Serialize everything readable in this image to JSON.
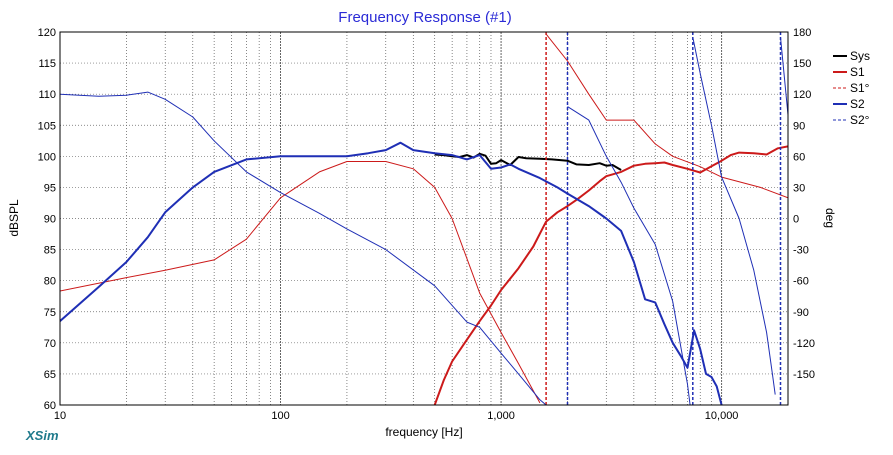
{
  "app": {
    "brand": "XSim"
  },
  "chart_data": {
    "type": "line",
    "title": "Frequency Response (#1)",
    "xlabel": "frequency [Hz]",
    "ylabel": "dBSPL",
    "y2label": "deg",
    "xscale": "log",
    "xlim": [
      10,
      20000
    ],
    "ylim": [
      60,
      120
    ],
    "y2lim": [
      -180,
      180
    ],
    "grid": true,
    "legend_position": "top-right",
    "x_ticks": [
      {
        "value": 10,
        "label": "10"
      },
      {
        "value": 100,
        "label": "100"
      },
      {
        "value": 1000,
        "label": "1,000"
      },
      {
        "value": 10000,
        "label": "10,000"
      }
    ],
    "y_ticks": [
      {
        "value": 60,
        "label": "60"
      },
      {
        "value": 65,
        "label": "65"
      },
      {
        "value": 70,
        "label": "70"
      },
      {
        "value": 75,
        "label": "75"
      },
      {
        "value": 80,
        "label": "80"
      },
      {
        "value": 85,
        "label": "85"
      },
      {
        "value": 90,
        "label": "90"
      },
      {
        "value": 95,
        "label": "95"
      },
      {
        "value": 100,
        "label": "100"
      },
      {
        "value": 105,
        "label": "105"
      },
      {
        "value": 110,
        "label": "110"
      },
      {
        "value": 115,
        "label": "115"
      },
      {
        "value": 120,
        "label": "120"
      }
    ],
    "y2_ticks": [
      {
        "value": 180,
        "label": "180"
      },
      {
        "value": 150,
        "label": "150"
      },
      {
        "value": 120,
        "label": "120"
      },
      {
        "value": 90,
        "label": "90"
      },
      {
        "value": 60,
        "label": "60"
      },
      {
        "value": 30,
        "label": "30"
      },
      {
        "value": 0,
        "label": "0"
      },
      {
        "value": -30,
        "label": "-30"
      },
      {
        "value": -60,
        "label": "-60"
      },
      {
        "value": -90,
        "label": "-90"
      },
      {
        "value": -120,
        "label": "-120"
      },
      {
        "value": -150,
        "label": "-150"
      }
    ],
    "series": [
      {
        "name": "Sys",
        "axis": "left",
        "color": "#000000",
        "dash": false,
        "width": 2,
        "x": [
          500,
          550,
          600,
          650,
          700,
          750,
          800,
          850,
          900,
          950,
          1000,
          1100,
          1200,
          1300,
          1500,
          1700,
          2000,
          2200,
          2500,
          2800,
          3000,
          3200,
          3500
        ],
        "y": [
          100.3,
          100.2,
          100,
          99.9,
          100.2,
          99.8,
          100.4,
          100.1,
          98.8,
          98.9,
          99.4,
          98.6,
          99.9,
          99.7,
          99.6,
          99.5,
          99.3,
          98.7,
          98.6,
          98.9,
          98.5,
          98.6,
          97.8
        ]
      },
      {
        "name": "S1",
        "axis": "left",
        "color": "#cc1a1a",
        "dash": false,
        "width": 2,
        "x": [
          500,
          550,
          600,
          700,
          800,
          900,
          1000,
          1200,
          1400,
          1600,
          1800,
          2000,
          2200,
          2500,
          2800,
          3000,
          3500,
          4000,
          4500,
          5000,
          5500,
          6000,
          7000,
          8000,
          9000,
          10000,
          11000,
          12000,
          14000,
          16000,
          18000,
          20000
        ],
        "y": [
          60,
          64,
          67,
          70.5,
          73.5,
          76,
          78.5,
          82,
          85.5,
          89.5,
          91,
          92,
          93,
          94.5,
          96,
          96.8,
          97.5,
          98.5,
          98.8,
          98.9,
          99,
          98.6,
          98,
          97.4,
          98.4,
          99.3,
          100.2,
          100.6,
          100.5,
          100.3,
          101.3,
          101.6
        ]
      },
      {
        "name": "S1°",
        "axis": "right",
        "color": "#cc1a1a",
        "dash": false,
        "width": 1,
        "x": [
          10,
          20,
          30,
          50,
          70,
          100,
          150,
          200,
          300,
          400,
          500,
          600,
          800,
          1000,
          1200,
          1500,
          1600,
          2000,
          2500,
          3000,
          4000,
          5000,
          6000,
          8000,
          10000,
          15000,
          20000
        ],
        "y": [
          -70,
          -57,
          -50,
          -40,
          -20,
          20,
          45,
          55,
          55,
          48,
          30,
          0,
          -72,
          -110,
          -140,
          -178,
          178,
          152,
          120,
          95,
          95,
          72,
          60,
          50,
          40,
          30,
          20
        ]
      },
      {
        "name": "S2",
        "axis": "left",
        "color": "#1f2fb5",
        "dash": false,
        "width": 2,
        "x": [
          10,
          15,
          20,
          25,
          30,
          40,
          50,
          70,
          100,
          150,
          200,
          250,
          300,
          350,
          400,
          500,
          600,
          700,
          800,
          900,
          1000,
          1100,
          1200,
          1500,
          1800,
          2000,
          2500,
          3000,
          3500,
          4000,
          4500,
          5000,
          5500,
          6000,
          6500,
          7000,
          7500,
          8000,
          8500,
          9000,
          9500,
          10000
        ],
        "y": [
          73.5,
          79,
          83,
          87,
          91,
          95,
          97.5,
          99.5,
          100,
          100,
          100,
          100.5,
          101,
          102.2,
          101,
          100.5,
          100.2,
          99.5,
          100.2,
          98,
          98.2,
          98.7,
          98,
          96.5,
          95,
          94,
          92,
          90,
          88,
          83,
          77,
          76.5,
          73,
          70,
          68,
          66,
          72,
          69,
          65,
          64.5,
          63,
          60
        ]
      },
      {
        "name": "S2°",
        "axis": "right",
        "color": "#1f2fb5",
        "dash": false,
        "width": 1,
        "x": [
          10,
          15,
          20,
          25,
          30,
          40,
          50,
          70,
          100,
          150,
          200,
          300,
          500,
          700,
          800,
          1000,
          1200,
          1500,
          1600,
          2000,
          2500,
          3000,
          3500,
          4000,
          5000,
          6000,
          7000,
          7200,
          7400,
          8000,
          9000,
          10000,
          12000,
          14000,
          16000,
          17000,
          17500,
          18500,
          20000
        ],
        "y": [
          120,
          118,
          119,
          122,
          115,
          98,
          75,
          45,
          25,
          5,
          -10,
          -30,
          -65,
          -100,
          -105,
          -130,
          -150,
          -175,
          -180,
          108,
          95,
          60,
          35,
          10,
          -25,
          -80,
          -160,
          -180,
          175,
          140,
          90,
          40,
          0,
          -50,
          -110,
          -150,
          -170,
          175,
          100
        ]
      }
    ]
  }
}
